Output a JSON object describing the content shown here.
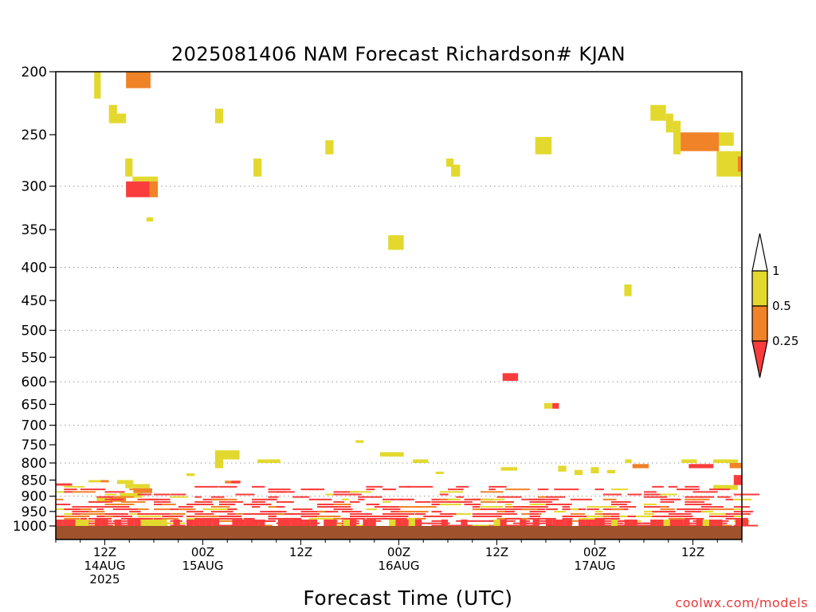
{
  "chart_data": {
    "type": "heatmap",
    "title": "2025081406 NAM Forecast Richardson# KJAN",
    "xlabel": "Forecast Time (UTC)",
    "credit": "coolwx.com/models",
    "y_ticks": [
      200,
      250,
      300,
      350,
      400,
      450,
      500,
      550,
      600,
      650,
      700,
      750,
      800,
      850,
      900,
      950,
      1000
    ],
    "y_gridlines": [
      300,
      400,
      500,
      600,
      700,
      800,
      900
    ],
    "x_ticks": [
      {
        "hour": 6,
        "lines": [
          "12Z",
          "14AUG",
          "2025"
        ]
      },
      {
        "hour": 18,
        "lines": [
          "00Z",
          "15AUG"
        ]
      },
      {
        "hour": 30,
        "lines": [
          "12Z"
        ]
      },
      {
        "hour": 42,
        "lines": [
          "00Z",
          "16AUG"
        ]
      },
      {
        "hour": 54,
        "lines": [
          "12Z"
        ]
      },
      {
        "hour": 66,
        "lines": [
          "00Z",
          "17AUG"
        ]
      },
      {
        "hour": 78,
        "lines": [
          "12Z"
        ]
      }
    ],
    "xlim": [
      0,
      84
    ],
    "ylim": [
      1000,
      200
    ],
    "y_scale": "log",
    "colorbar": {
      "ticks": [
        "1",
        "0.5",
        "0.25"
      ],
      "bins": [
        {
          "range": "0.5-1",
          "color": "#e3d92e"
        },
        {
          "range": "0.25-0.5",
          "color": "#f08228"
        },
        {
          "range": "<0.25",
          "color": "#fa3c3c"
        }
      ],
      "over_color": "#ffffff"
    },
    "ground_color": "#a0522d",
    "colors": {
      "yellow": "#e3d92e",
      "orange": "#f08228",
      "red": "#fa3c3c"
    },
    "cells": [
      [
        "y",
        4.7,
        5.5,
        200,
        220
      ],
      [
        "o",
        8.6,
        11.6,
        200,
        212
      ],
      [
        "y",
        6.5,
        7.5,
        225,
        232
      ],
      [
        "y",
        6.5,
        8.6,
        232,
        240
      ],
      [
        "y",
        19.5,
        20.5,
        228,
        240
      ],
      [
        "y",
        33,
        34,
        255,
        268
      ],
      [
        "y",
        8.5,
        9.4,
        272,
        290
      ],
      [
        "y",
        24.2,
        25.2,
        272,
        290
      ],
      [
        "y",
        47.8,
        48.7,
        272,
        280
      ],
      [
        "y",
        48.4,
        49.5,
        278,
        290
      ],
      [
        "y",
        58.7,
        60.7,
        252,
        268
      ],
      [
        "y",
        72.8,
        74.7,
        225,
        238
      ],
      [
        "y",
        74.7,
        75.6,
        232,
        248
      ],
      [
        "y",
        75.6,
        76.5,
        238,
        268
      ],
      [
        "o",
        76.5,
        81.2,
        248,
        265
      ],
      [
        "y",
        81.2,
        83,
        248,
        260
      ],
      [
        "y",
        80.9,
        84,
        265,
        290
      ],
      [
        "o",
        83.5,
        84,
        270,
        285
      ],
      [
        "y",
        9.4,
        12.5,
        290,
        295
      ],
      [
        "r",
        8.6,
        11.5,
        295,
        312
      ],
      [
        "o",
        11.5,
        12.5,
        295,
        312
      ],
      [
        "y",
        11.1,
        11.9,
        335,
        340
      ],
      [
        "y",
        40.7,
        42.6,
        357,
        376
      ],
      [
        "y",
        69.6,
        70.5,
        425,
        443
      ],
      [
        "r",
        54.7,
        56.6,
        582,
        598
      ],
      [
        "y",
        59.8,
        60.8,
        647,
        660
      ],
      [
        "r",
        60.8,
        61.6,
        647,
        660
      ],
      [
        "y",
        36.7,
        37.7,
        738,
        745
      ],
      [
        "y",
        39.7,
        42.6,
        770,
        782
      ],
      [
        "y",
        19.5,
        22.5,
        765,
        790
      ],
      [
        "y",
        19.5,
        20.5,
        790,
        815
      ],
      [
        "y",
        24.7,
        27.5,
        790,
        800
      ],
      [
        "y",
        43.7,
        45.6,
        790,
        800
      ],
      [
        "y",
        69.7,
        70.5,
        790,
        800
      ],
      [
        "o",
        70.6,
        72.6,
        803,
        815
      ],
      [
        "y",
        76.6,
        78.5,
        790,
        800
      ],
      [
        "r",
        77.5,
        80.5,
        803,
        815
      ],
      [
        "y",
        80.5,
        83.5,
        790,
        800
      ],
      [
        "o",
        82.5,
        84,
        800,
        815
      ],
      [
        "y",
        54.5,
        56.5,
        812,
        822
      ],
      [
        "y",
        46.5,
        47.5,
        825,
        832
      ],
      [
        "y",
        63.5,
        64.5,
        820,
        835
      ],
      [
        "y",
        65.5,
        66.5,
        812,
        830
      ],
      [
        "y",
        67.5,
        68.5,
        820,
        830
      ],
      [
        "y",
        61.5,
        62.5,
        808,
        825
      ],
      [
        "y",
        16,
        17,
        830,
        838
      ],
      [
        "y",
        80.5,
        83.5,
        865,
        880
      ],
      [
        "r",
        83,
        84,
        835,
        865
      ],
      [
        "y",
        4,
        5.5,
        850,
        857
      ],
      [
        "o",
        5.5,
        6.5,
        850,
        857
      ],
      [
        "y",
        7.5,
        9.5,
        850,
        862
      ],
      [
        "y",
        8.5,
        11.5,
        862,
        875
      ],
      [
        "o",
        9.5,
        11.8,
        875,
        890
      ],
      [
        "y",
        7.8,
        10.6,
        890,
        905
      ],
      [
        "o",
        6.7,
        8.6,
        905,
        918
      ],
      [
        "y",
        5,
        6.7,
        905,
        918
      ],
      [
        "r",
        0,
        2,
        860,
        867
      ],
      [
        "o",
        20.7,
        22.6,
        852,
        860
      ],
      [
        "r",
        21.5,
        22.6,
        852,
        860
      ]
    ]
  }
}
